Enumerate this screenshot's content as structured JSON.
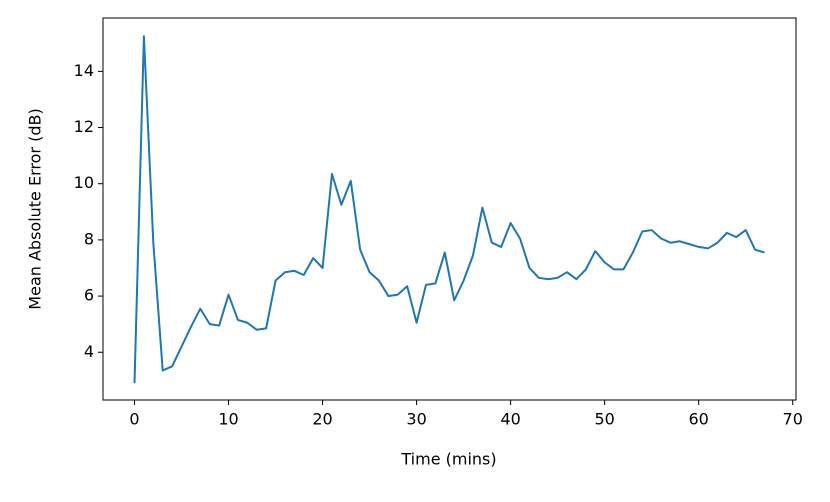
{
  "chart_data": {
    "type": "line",
    "xlabel": "Time (mins)",
    "ylabel": "Mean Absolute Error (dB)",
    "x": [
      0,
      1,
      2,
      3,
      4,
      5,
      6,
      7,
      8,
      9,
      10,
      11,
      12,
      13,
      14,
      15,
      16,
      17,
      18,
      19,
      20,
      21,
      22,
      23,
      24,
      25,
      26,
      27,
      28,
      29,
      30,
      31,
      32,
      33,
      34,
      35,
      36,
      37,
      38,
      39,
      40,
      41,
      42,
      43,
      44,
      45,
      46,
      47,
      48,
      49,
      50,
      51,
      52,
      53,
      54,
      55,
      56,
      57,
      58,
      59,
      60,
      61,
      62,
      63,
      64,
      65,
      66,
      67
    ],
    "series": [
      {
        "color": "#1f77b4",
        "values": [
          2.9,
          15.25,
          7.9,
          3.35,
          3.5,
          4.2,
          4.9,
          5.55,
          5.0,
          4.95,
          6.05,
          5.15,
          5.05,
          4.8,
          4.85,
          6.55,
          6.85,
          6.9,
          6.75,
          7.35,
          7.0,
          10.35,
          9.25,
          10.1,
          7.65,
          6.85,
          6.55,
          6.0,
          6.05,
          6.35,
          5.05,
          6.4,
          6.45,
          7.55,
          5.85,
          6.55,
          7.45,
          9.15,
          7.9,
          7.75,
          8.6,
          8.05,
          7.0,
          6.65,
          6.6,
          6.65,
          6.85,
          6.6,
          6.95,
          7.6,
          7.2,
          6.95,
          6.95,
          7.55,
          8.3,
          8.35,
          8.05,
          7.9,
          7.95,
          7.85,
          7.75,
          7.7,
          7.9,
          8.25,
          8.1,
          8.35,
          7.65,
          7.55
        ]
      }
    ],
    "xlim": [
      -3.35,
      70.35
    ],
    "xticks": [
      0,
      10,
      20,
      30,
      40,
      50,
      60,
      70
    ],
    "ylim": [
      2.3,
      15.9
    ],
    "yticks": [
      4,
      6,
      8,
      10,
      12,
      14
    ]
  }
}
